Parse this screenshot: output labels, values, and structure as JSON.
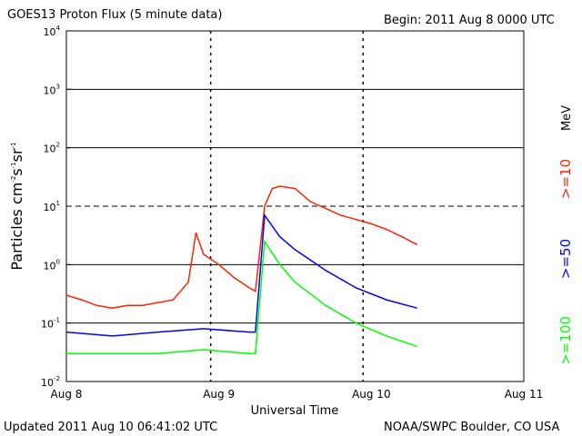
{
  "chart_data": {
    "type": "line",
    "title": "GOES13 Proton Flux (5 minute data)",
    "begin_label": "Begin: 2011 Aug 8 0000 UTC",
    "xlabel": "Universal Time",
    "ylabel_prefix": "Particles cm",
    "ylabel_exp1": "-2",
    "ylabel_mid": "s",
    "ylabel_exp2": "-1",
    "ylabel_mid2": "sr",
    "ylabel_exp3": "-1",
    "yscale": "log",
    "ylim": [
      0.01,
      10000
    ],
    "xlim_days": [
      0,
      3
    ],
    "y_tick_base": "10",
    "y_tick_exponents": [
      "-2",
      "-1",
      "0",
      "1",
      "2",
      "3",
      "4"
    ],
    "x_tick_labels": [
      "Aug 8",
      "Aug 9",
      "Aug 10",
      "Aug 11"
    ],
    "unit_label": "MeV",
    "series": [
      {
        "name": ">=10",
        "color": "#ff2200",
        "x": [
          0,
          0.1,
          0.2,
          0.3,
          0.4,
          0.5,
          0.7,
          0.8,
          0.85,
          0.9,
          1.0,
          1.1,
          1.2,
          1.24,
          1.3,
          1.35,
          1.4,
          1.5,
          1.6,
          1.8,
          2.0,
          2.1,
          2.2,
          2.3
        ],
        "y": [
          0.3,
          0.25,
          0.2,
          0.18,
          0.2,
          0.2,
          0.25,
          0.5,
          3.5,
          1.5,
          1.0,
          0.6,
          0.4,
          0.35,
          10,
          20,
          22,
          20,
          12,
          7,
          5,
          4,
          3,
          2.2
        ]
      },
      {
        "name": ">=50",
        "color": "#0000ff",
        "x": [
          0,
          0.3,
          0.6,
          0.9,
          1.2,
          1.24,
          1.3,
          1.4,
          1.5,
          1.7,
          1.9,
          2.1,
          2.3
        ],
        "y": [
          0.07,
          0.06,
          0.07,
          0.08,
          0.07,
          0.07,
          7,
          3,
          1.8,
          0.8,
          0.4,
          0.25,
          0.18
        ]
      },
      {
        "name": ">=100",
        "color": "#00ff00",
        "x": [
          0,
          0.3,
          0.6,
          0.9,
          1.2,
          1.24,
          1.3,
          1.4,
          1.5,
          1.7,
          1.9,
          2.1,
          2.3
        ],
        "y": [
          0.03,
          0.03,
          0.03,
          0.035,
          0.03,
          0.03,
          2.5,
          1.0,
          0.5,
          0.2,
          0.1,
          0.06,
          0.04
        ]
      }
    ]
  },
  "footer": {
    "updated": "Updated 2011 Aug 10 06:41:02 UTC",
    "source": "NOAA/SWPC Boulder, CO USA"
  }
}
